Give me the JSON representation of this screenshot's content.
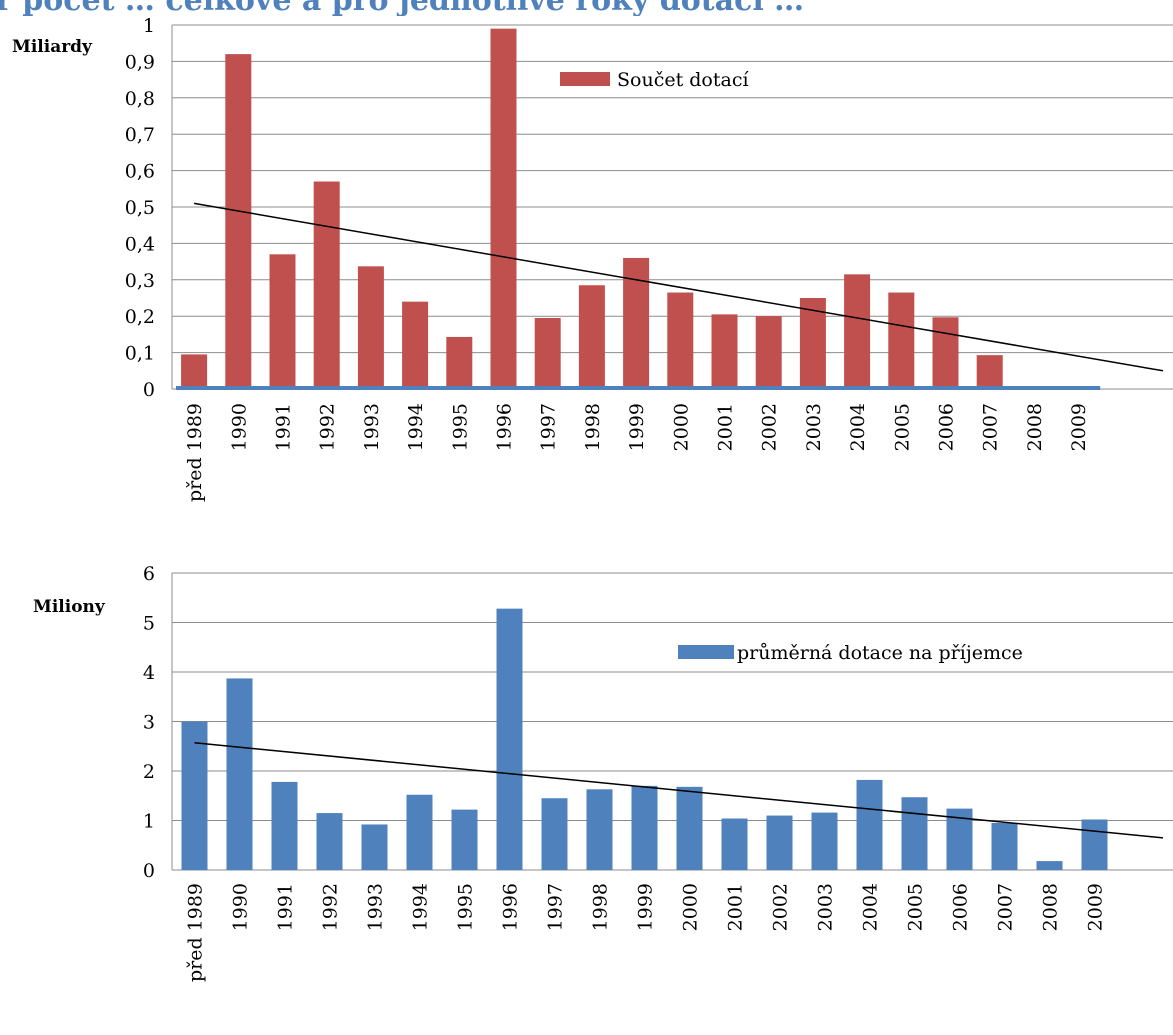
{
  "page": {
    "title_fragment": "ř počet … celkově a pro jednotlivé roky dotací …"
  },
  "chart_data": [
    {
      "type": "bar",
      "unit_label": "Miliardy",
      "categories": [
        "před 1989",
        "1990",
        "1991",
        "1992",
        "1993",
        "1994",
        "1995",
        "1996",
        "1997",
        "1998",
        "1999",
        "2000",
        "2001",
        "2002",
        "2003",
        "2004",
        "2005",
        "2006",
        "2007",
        "2008",
        "2009"
      ],
      "series": [
        {
          "name": "Součet dotací",
          "color": "#c0504d",
          "values": [
            0.095,
            0.92,
            0.37,
            0.57,
            0.337,
            0.24,
            0.143,
            0.99,
            0.195,
            0.285,
            0.36,
            0.265,
            0.205,
            0.2,
            0.25,
            0.315,
            0.265,
            0.197,
            0.093,
            0,
            0
          ]
        }
      ],
      "baseline_color": "#4f81bd",
      "trendline": {
        "color": "#000000",
        "start_value": 0.51,
        "end_value": 0.05
      },
      "ylim": [
        0,
        1
      ],
      "ytick_labels": [
        "0",
        "0,1",
        "0,2",
        "0,3",
        "0,4",
        "0,5",
        "0,6",
        "0,7",
        "0,8",
        "0,9",
        "1"
      ],
      "grid": true,
      "legend_position": "top-center"
    },
    {
      "type": "bar",
      "unit_label": "Miliony",
      "categories": [
        "před 1989",
        "1990",
        "1991",
        "1992",
        "1993",
        "1994",
        "1995",
        "1996",
        "1997",
        "1998",
        "1999",
        "2000",
        "2001",
        "2002",
        "2003",
        "2004",
        "2005",
        "2006",
        "2007",
        "2008",
        "2009"
      ],
      "series": [
        {
          "name": "průměrná dotace na příjemce",
          "color": "#4f81bd",
          "values": [
            3.0,
            3.87,
            1.78,
            1.15,
            0.92,
            1.52,
            1.22,
            5.28,
            1.45,
            1.63,
            1.7,
            1.68,
            1.04,
            1.1,
            1.16,
            1.82,
            1.47,
            1.24,
            0.95,
            0.18,
            1.02
          ]
        }
      ],
      "trendline": {
        "color": "#000000",
        "start_value": 2.57,
        "end_value": 0.65
      },
      "ylim": [
        0,
        6
      ],
      "ytick_labels": [
        "0",
        "1",
        "2",
        "3",
        "4",
        "5",
        "6"
      ],
      "grid": true,
      "legend_position": "top-right"
    }
  ]
}
